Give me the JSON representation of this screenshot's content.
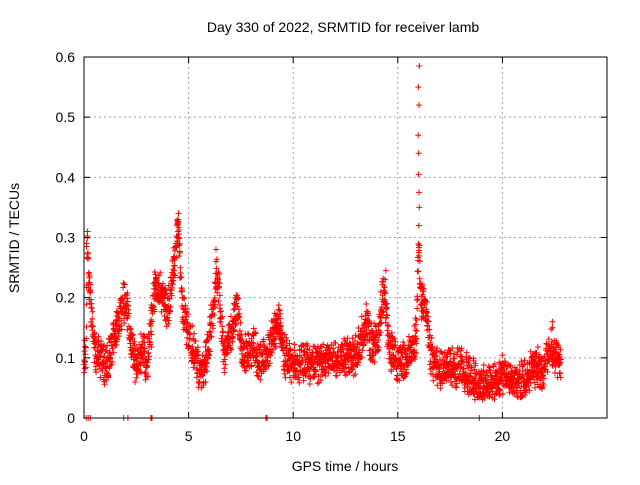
{
  "chart_data": {
    "type": "scatter",
    "title": "Day 330 of 2022, SRMTID for receiver lamb",
    "xlabel": "GPS time / hours",
    "ylabel": "SRMTID / TECUs",
    "xlim": [
      0,
      25
    ],
    "ylim": [
      0,
      0.6
    ],
    "xticks": [
      0,
      5,
      10,
      15,
      20
    ],
    "xtick_labels": [
      "0",
      "5",
      "10",
      "15",
      "20"
    ],
    "yticks": [
      0,
      0.1,
      0.2,
      0.3,
      0.4,
      0.5,
      0.6
    ],
    "ytick_labels": [
      "0",
      "0.1",
      "0.2",
      "0.3",
      "0.4",
      "0.5",
      "0.6"
    ],
    "grid": true,
    "marker": "+",
    "series": [
      {
        "name": "SRMTID",
        "color": "#ff0000",
        "profile": [
          [
            0.0,
            0.1
          ],
          [
            0.1,
            0.1
          ],
          [
            0.15,
            0.28
          ],
          [
            0.3,
            0.2
          ],
          [
            0.5,
            0.11
          ],
          [
            0.8,
            0.1
          ],
          [
            1.0,
            0.09
          ],
          [
            1.3,
            0.12
          ],
          [
            1.6,
            0.15
          ],
          [
            1.8,
            0.18
          ],
          [
            2.0,
            0.2
          ],
          [
            2.2,
            0.14
          ],
          [
            2.4,
            0.1
          ],
          [
            2.6,
            0.09
          ],
          [
            2.8,
            0.11
          ],
          [
            3.0,
            0.09
          ],
          [
            3.2,
            0.15
          ],
          [
            3.4,
            0.22
          ],
          [
            3.7,
            0.2
          ],
          [
            4.0,
            0.18
          ],
          [
            4.3,
            0.25
          ],
          [
            4.5,
            0.32
          ],
          [
            4.7,
            0.18
          ],
          [
            5.0,
            0.14
          ],
          [
            5.3,
            0.1
          ],
          [
            5.6,
            0.07
          ],
          [
            6.0,
            0.12
          ],
          [
            6.2,
            0.2
          ],
          [
            6.4,
            0.24
          ],
          [
            6.7,
            0.1
          ],
          [
            7.0,
            0.13
          ],
          [
            7.3,
            0.19
          ],
          [
            7.6,
            0.1
          ],
          [
            8.0,
            0.12
          ],
          [
            8.5,
            0.09
          ],
          [
            9.0,
            0.13
          ],
          [
            9.3,
            0.16
          ],
          [
            9.6,
            0.1
          ],
          [
            10.0,
            0.09
          ],
          [
            11.0,
            0.09
          ],
          [
            12.0,
            0.1
          ],
          [
            13.0,
            0.1
          ],
          [
            13.5,
            0.16
          ],
          [
            13.8,
            0.12
          ],
          [
            14.1,
            0.14
          ],
          [
            14.3,
            0.22
          ],
          [
            14.6,
            0.12
          ],
          [
            15.0,
            0.09
          ],
          [
            15.5,
            0.1
          ],
          [
            15.9,
            0.14
          ],
          [
            16.0,
            0.3
          ],
          [
            16.1,
            0.2
          ],
          [
            16.3,
            0.19
          ],
          [
            16.6,
            0.1
          ],
          [
            17.0,
            0.08
          ],
          [
            17.5,
            0.09
          ],
          [
            18.0,
            0.08
          ],
          [
            18.5,
            0.07
          ],
          [
            19.0,
            0.05
          ],
          [
            19.5,
            0.06
          ],
          [
            20.0,
            0.07
          ],
          [
            20.5,
            0.06
          ],
          [
            21.0,
            0.06
          ],
          [
            21.5,
            0.08
          ],
          [
            22.0,
            0.08
          ],
          [
            22.3,
            0.12
          ],
          [
            22.8,
            0.08
          ]
        ],
        "spikes": [
          {
            "x": 16.0,
            "values": [
              0.585,
              0.55,
              0.52,
              0.47,
              0.44,
              0.405,
              0.375,
              0.35,
              0.32
            ]
          },
          {
            "x": 4.5,
            "values": [
              0.34,
              0.33,
              0.31,
              0.29
            ]
          },
          {
            "x": 0.15,
            "values": [
              0.31,
              0.29,
              0.285
            ]
          },
          {
            "x": 14.4,
            "values": [
              0.245,
              0.23
            ]
          },
          {
            "x": 6.3,
            "values": [
              0.28,
              0.26
            ]
          },
          {
            "x": 22.4,
            "values": [
              0.16,
              0.15
            ]
          }
        ],
        "zero_points": [
          0.1,
          0.2,
          0.3,
          1.9,
          2.1,
          3.2,
          3.25,
          8.7,
          8.75,
          18.9
        ]
      }
    ]
  }
}
